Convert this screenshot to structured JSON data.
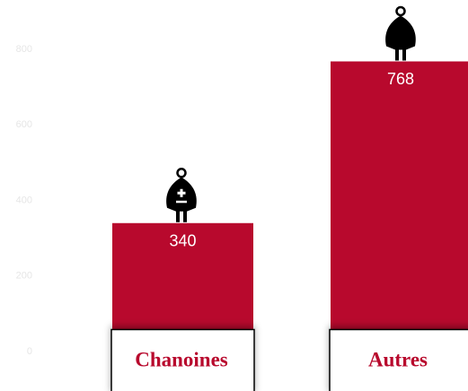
{
  "chart_data": {
    "type": "bar",
    "categories": [
      "Chanoines",
      "Autres"
    ],
    "values": [
      340,
      768
    ],
    "color": "#b8092d",
    "ylim": [
      0,
      800
    ],
    "yticks": [
      0,
      200,
      400,
      600,
      800
    ],
    "grid": false
  }
}
